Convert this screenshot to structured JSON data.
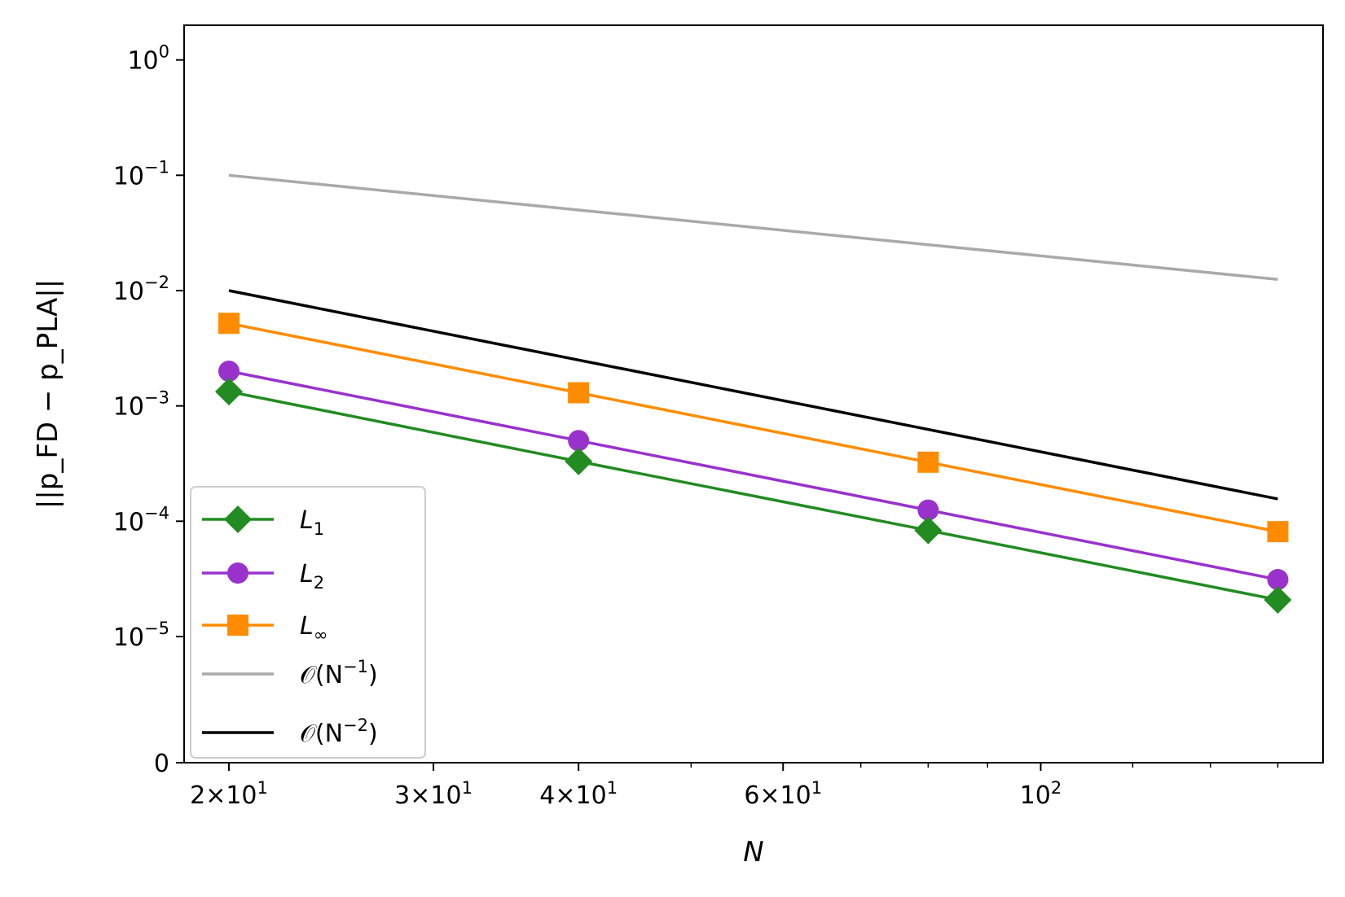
{
  "chart_data": {
    "type": "line",
    "xscale": "log",
    "yscale": "symlog",
    "xlabel": "N",
    "ylabel": "||p_FD − p_PLA||",
    "x": [
      20,
      40,
      80,
      160
    ],
    "xlim": [
      18.3,
      175
    ],
    "ylim": [
      0,
      2
    ],
    "x_ticks": [
      {
        "value": 20,
        "mantissa": "2",
        "exp": "1"
      },
      {
        "value": 30,
        "mantissa": "3",
        "exp": "1"
      },
      {
        "value": 40,
        "mantissa": "4",
        "exp": "1"
      },
      {
        "value": 60,
        "mantissa": "6",
        "exp": "1"
      },
      {
        "value": 100,
        "mantissa": "",
        "exp": "2"
      }
    ],
    "y_ticks": [
      {
        "value": 0,
        "label": "0",
        "exp": ""
      },
      {
        "value": 1e-05,
        "label": "10",
        "exp": "−5"
      },
      {
        "value": 0.0001,
        "label": "10",
        "exp": "−4"
      },
      {
        "value": 0.001,
        "label": "10",
        "exp": "−3"
      },
      {
        "value": 0.01,
        "label": "10",
        "exp": "−2"
      },
      {
        "value": 0.1,
        "label": "10",
        "exp": "−1"
      },
      {
        "value": 1,
        "label": "10",
        "exp": "0"
      }
    ],
    "series": [
      {
        "name": "L1",
        "label_main": "L",
        "label_sub": "1",
        "color": "#228b22",
        "marker": "diamond",
        "values": [
          0.00133,
          0.00033,
          8.33e-05,
          2.08e-05
        ]
      },
      {
        "name": "L2",
        "label_main": "L",
        "label_sub": "2",
        "color": "#9932cc",
        "marker": "circle",
        "values": [
          0.002,
          0.0005,
          0.000125,
          3.12e-05
        ]
      },
      {
        "name": "Linf",
        "label_main": "L",
        "label_sub": "∞",
        "color": "#ff8c00",
        "marker": "square",
        "values": [
          0.0052,
          0.0013,
          0.000325,
          8.12e-05
        ]
      },
      {
        "name": "O(N^-1)",
        "label_main": "𝒪(N",
        "label_sup": "−1",
        "label_end": ")",
        "color": "#a9a9a9",
        "marker": "none",
        "values": [
          0.1,
          0.05,
          0.025,
          0.0125
        ]
      },
      {
        "name": "O(N^-2)",
        "label_main": "𝒪(N",
        "label_sup": "−2",
        "label_end": ")",
        "color": "#000000",
        "marker": "none",
        "values": [
          0.01,
          0.0025,
          0.000625,
          0.000156
        ]
      }
    ],
    "legend_position": "lower-left"
  }
}
